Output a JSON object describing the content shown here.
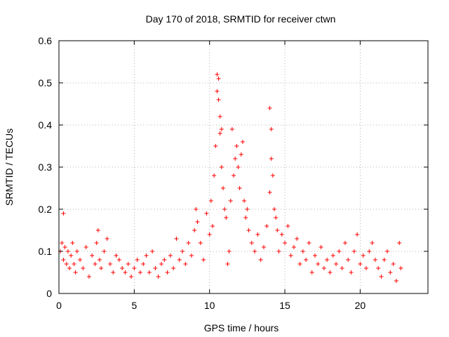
{
  "chart_data": {
    "type": "scatter",
    "title": "Day 170 of 2018, SRMTID for receiver ctwn",
    "xlabel": "GPS time / hours",
    "ylabel": "SRMTID / TECUs",
    "xlim": [
      0,
      24.5
    ],
    "ylim": [
      0,
      0.6
    ],
    "x_ticks": [
      0,
      5,
      10,
      15,
      20
    ],
    "x_tick_labels": [
      "0",
      "5",
      "10",
      "15",
      "20"
    ],
    "y_ticks": [
      0,
      0.1,
      0.2,
      0.3,
      0.4,
      0.5,
      0.6
    ],
    "y_tick_labels": [
      "0",
      "0.1",
      "0.2",
      "0.3",
      "0.4",
      "0.5",
      "0.6"
    ],
    "grid": true,
    "marker": "+",
    "marker_color": "#ff0000",
    "series": [
      {
        "name": "SRMTID",
        "x": [
          0.1,
          0.2,
          0.3,
          0.3,
          0.4,
          0.5,
          0.6,
          0.7,
          0.8,
          0.9,
          1.0,
          1.1,
          1.2,
          1.4,
          1.6,
          1.8,
          2.0,
          2.2,
          2.4,
          2.5,
          2.6,
          2.7,
          2.8,
          3.0,
          3.2,
          3.4,
          3.6,
          3.8,
          4.0,
          4.2,
          4.4,
          4.6,
          4.8,
          5.0,
          5.2,
          5.4,
          5.6,
          5.8,
          6.0,
          6.2,
          6.4,
          6.6,
          6.8,
          7.0,
          7.2,
          7.4,
          7.6,
          7.8,
          8.0,
          8.2,
          8.4,
          8.6,
          8.8,
          9.0,
          9.1,
          9.2,
          9.4,
          9.6,
          9.8,
          10.0,
          10.1,
          10.2,
          10.3,
          10.4,
          10.5,
          10.5,
          10.6,
          10.6,
          10.7,
          10.7,
          10.8,
          10.8,
          10.9,
          11.0,
          11.1,
          11.2,
          11.3,
          11.4,
          11.5,
          11.6,
          11.7,
          11.8,
          11.9,
          12.0,
          12.1,
          12.2,
          12.3,
          12.4,
          12.5,
          12.6,
          12.8,
          13.0,
          13.2,
          13.4,
          13.6,
          13.8,
          14.0,
          14.0,
          14.1,
          14.1,
          14.2,
          14.3,
          14.4,
          14.5,
          14.6,
          14.8,
          15.0,
          15.2,
          15.4,
          15.6,
          15.8,
          16.0,
          16.2,
          16.4,
          16.6,
          16.8,
          17.0,
          17.2,
          17.4,
          17.6,
          17.8,
          18.0,
          18.2,
          18.4,
          18.6,
          18.8,
          19.0,
          19.2,
          19.4,
          19.6,
          19.8,
          20.0,
          20.2,
          20.4,
          20.6,
          20.8,
          21.0,
          21.2,
          21.4,
          21.6,
          21.8,
          22.0,
          22.2,
          22.4,
          22.6,
          22.7
        ],
        "y": [
          0.1,
          0.12,
          0.19,
          0.08,
          0.11,
          0.07,
          0.1,
          0.06,
          0.09,
          0.12,
          0.07,
          0.05,
          0.1,
          0.08,
          0.06,
          0.11,
          0.04,
          0.09,
          0.07,
          0.12,
          0.15,
          0.08,
          0.06,
          0.1,
          0.13,
          0.07,
          0.05,
          0.09,
          0.08,
          0.06,
          0.05,
          0.07,
          0.04,
          0.06,
          0.08,
          0.05,
          0.07,
          0.09,
          0.05,
          0.1,
          0.06,
          0.04,
          0.07,
          0.08,
          0.05,
          0.09,
          0.06,
          0.13,
          0.08,
          0.1,
          0.07,
          0.12,
          0.09,
          0.15,
          0.2,
          0.17,
          0.12,
          0.08,
          0.19,
          0.14,
          0.22,
          0.16,
          0.28,
          0.35,
          0.52,
          0.48,
          0.51,
          0.46,
          0.42,
          0.38,
          0.39,
          0.3,
          0.25,
          0.2,
          0.18,
          0.07,
          0.1,
          0.22,
          0.39,
          0.28,
          0.32,
          0.35,
          0.3,
          0.25,
          0.33,
          0.36,
          0.22,
          0.18,
          0.2,
          0.15,
          0.12,
          0.1,
          0.14,
          0.08,
          0.11,
          0.16,
          0.24,
          0.44,
          0.39,
          0.32,
          0.28,
          0.2,
          0.18,
          0.15,
          0.1,
          0.14,
          0.12,
          0.16,
          0.09,
          0.11,
          0.13,
          0.07,
          0.1,
          0.08,
          0.12,
          0.05,
          0.09,
          0.07,
          0.11,
          0.06,
          0.08,
          0.05,
          0.09,
          0.07,
          0.1,
          0.06,
          0.12,
          0.08,
          0.05,
          0.1,
          0.14,
          0.07,
          0.09,
          0.06,
          0.1,
          0.12,
          0.08,
          0.06,
          0.04,
          0.08,
          0.1,
          0.05,
          0.07,
          0.03,
          0.12,
          0.06
        ]
      }
    ]
  }
}
